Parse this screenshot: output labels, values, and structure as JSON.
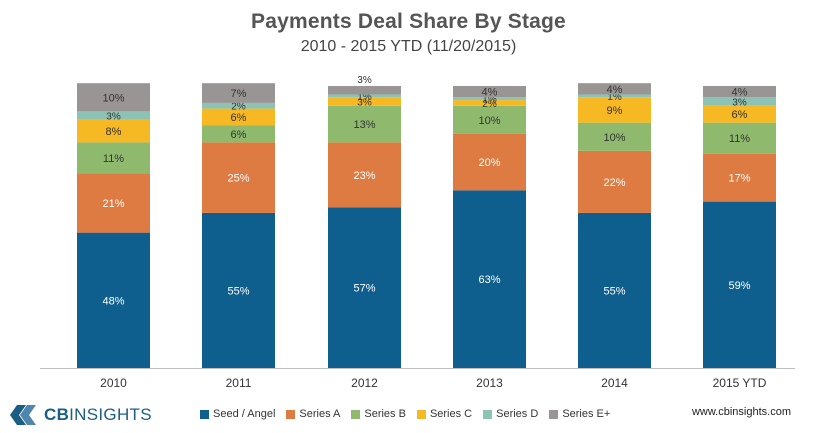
{
  "chart_data": {
    "type": "bar",
    "stacked": true,
    "percent": true,
    "title": "Payments Deal Share By Stage",
    "subtitle": "2010 - 2015 YTD (11/20/2015)",
    "categories": [
      "2010",
      "2011",
      "2012",
      "2013",
      "2014",
      "2015 YTD"
    ],
    "ylim": [
      0,
      100
    ],
    "legend_position": "bottom",
    "series": [
      {
        "name": "Seed / Angel",
        "color": "#0f5f8e",
        "values": [
          48,
          55,
          57,
          63,
          55,
          59
        ],
        "labels": [
          "48%",
          "55%",
          "57%",
          "63%",
          "55%",
          "59%"
        ]
      },
      {
        "name": "Series A",
        "color": "#de7b42",
        "values": [
          21,
          25,
          23,
          20,
          22,
          17
        ],
        "labels": [
          "21%",
          "25%",
          "23%",
          "20%",
          "22%",
          "17%"
        ]
      },
      {
        "name": "Series B",
        "color": "#8fba6e",
        "values": [
          11,
          6,
          13,
          10,
          10,
          11
        ],
        "labels": [
          "11%",
          "6%",
          "13%",
          "10%",
          "10%",
          "11%"
        ]
      },
      {
        "name": "Series C",
        "color": "#f6b823",
        "values": [
          8,
          6,
          3,
          2,
          9,
          6
        ],
        "labels": [
          "8%",
          "6%",
          "3%",
          "2%",
          "9%",
          "6%"
        ]
      },
      {
        "name": "Series D",
        "color": "#8cc3b4",
        "values": [
          3,
          2,
          1,
          1,
          1,
          3
        ],
        "labels": [
          "3%",
          "2%",
          "1%",
          "1%",
          "1%",
          "3%"
        ]
      },
      {
        "name": "Series E+",
        "color": "#9a9595",
        "values": [
          10,
          7,
          3,
          4,
          4,
          4
        ],
        "labels": [
          "10%",
          "7%",
          "3%",
          "4%",
          "4%",
          "4%"
        ]
      }
    ]
  },
  "footer": {
    "logo_cb": "CB",
    "logo_insights": "INSIGHTS",
    "logo_color": "#1b5e84",
    "url": "www.cbinsights.com"
  }
}
